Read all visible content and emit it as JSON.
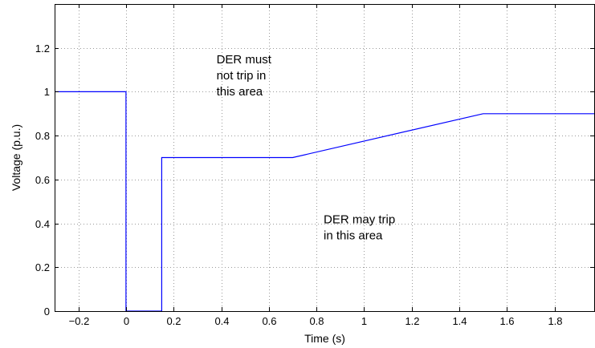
{
  "chart_data": {
    "type": "line",
    "title": "",
    "xlabel": "Time (s)",
    "ylabel": "Voltage (p.u.)",
    "xlim": [
      -0.3,
      1.97
    ],
    "ylim": [
      0,
      1.4
    ],
    "grid": true,
    "x_ticks": [
      -0.2,
      0,
      0.2,
      0.4,
      0.6,
      0.8,
      1,
      1.2,
      1.4,
      1.6,
      1.8
    ],
    "x_tick_labels": [
      "−0.2",
      "0",
      "0.2",
      "0.4",
      "0.6",
      "0.8",
      "1",
      "1.2",
      "1.4",
      "1.6",
      "1.8"
    ],
    "y_ticks": [
      0,
      0.2,
      0.4,
      0.6,
      0.8,
      1,
      1.2
    ],
    "y_tick_labels": [
      "0",
      "0.2",
      "0.4",
      "0.6",
      "0.8",
      "1",
      "1.2"
    ],
    "series": [
      {
        "color": "#0000ff",
        "x": [
          -0.3,
          0,
          0,
          0.15,
          0.15,
          0.7,
          1.5,
          1.97
        ],
        "y": [
          1,
          1,
          0,
          0,
          0.7,
          0.7,
          0.9,
          0.9
        ]
      }
    ],
    "annotations": [
      {
        "lines": [
          "DER must",
          "not trip in",
          "this area"
        ],
        "x": 0.38,
        "y": 1.13
      },
      {
        "lines": [
          "DER may trip",
          "in this area"
        ],
        "x": 0.83,
        "y": 0.4
      }
    ]
  }
}
